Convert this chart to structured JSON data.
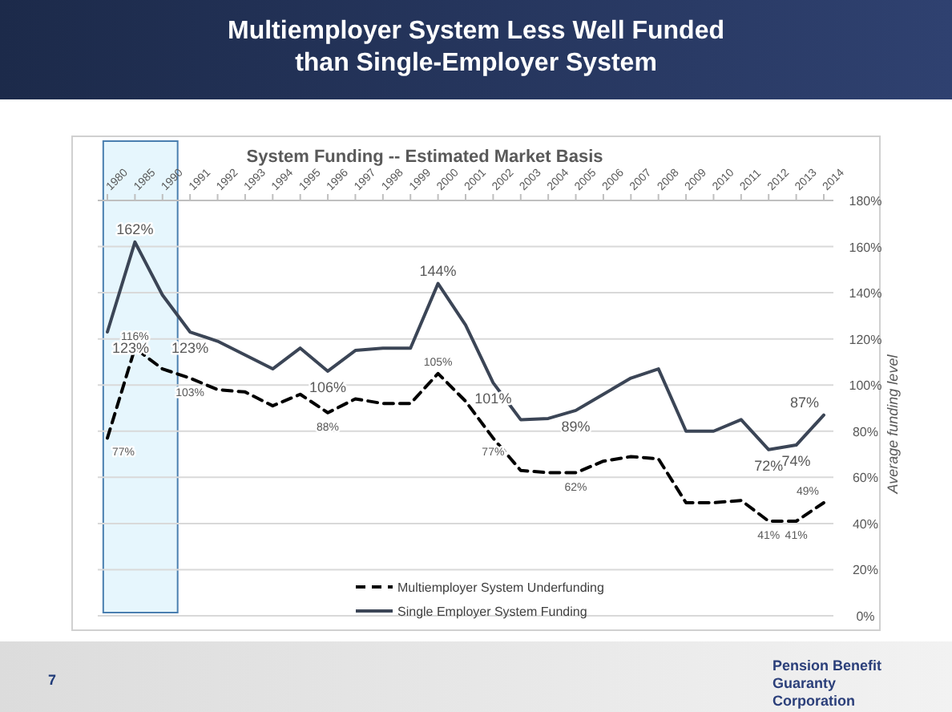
{
  "chart_data": {
    "type": "line",
    "title": "Multiemployer System Less Well Funded than Single-Employer System",
    "subtitle": "System Funding -- Estimated Market Basis",
    "ylabel": "Average funding level",
    "categories": [
      "1980",
      "1985",
      "1990",
      "1991",
      "1992",
      "1993",
      "1994",
      "1995",
      "1996",
      "1997",
      "1998",
      "1999",
      "2000",
      "2001",
      "2002",
      "2003",
      "2004",
      "2005",
      "2006",
      "2007",
      "2008",
      "2009",
      "2010",
      "2011",
      "2012",
      "2013",
      "2014"
    ],
    "series": [
      {
        "name": "Multiemployer System Underfunding",
        "color": "#000000",
        "line_style": "dashed",
        "values": [
          77,
          116,
          107,
          103,
          98,
          97,
          91,
          96,
          88,
          94,
          92,
          92,
          105,
          93,
          77,
          63,
          62,
          62,
          67,
          69,
          68,
          49,
          49,
          50,
          41,
          41,
          49
        ],
        "value_labels": [
          "77%",
          "116%",
          null,
          "103%",
          null,
          null,
          null,
          null,
          "88%",
          null,
          null,
          null,
          "105%",
          null,
          "77%",
          null,
          null,
          "62%",
          null,
          null,
          null,
          null,
          null,
          null,
          "41%",
          "41%",
          "49%"
        ]
      },
      {
        "name": "Single Employer System Funding",
        "color": "#3b4556",
        "line_style": "solid",
        "values": [
          123,
          162,
          139,
          123,
          119,
          113,
          107,
          116,
          106,
          115,
          116,
          116,
          144,
          126,
          101,
          85,
          85.5,
          89,
          96,
          103,
          107,
          80,
          80,
          85,
          72,
          74,
          87
        ],
        "value_labels": [
          "123%",
          "162%",
          null,
          "123%",
          null,
          null,
          null,
          null,
          "106%",
          null,
          null,
          null,
          "144%",
          null,
          "101%",
          null,
          null,
          "89%",
          null,
          null,
          null,
          null,
          null,
          null,
          "72%",
          "74%",
          "87%"
        ]
      }
    ],
    "ylim": [
      0,
      180
    ],
    "yticks": [
      {
        "value": 0,
        "label": "0%"
      },
      {
        "value": 20,
        "label": "20%"
      },
      {
        "value": 40,
        "label": "40%"
      },
      {
        "value": 60,
        "label": "60%"
      },
      {
        "value": 80,
        "label": "80%"
      },
      {
        "value": 100,
        "label": "100%"
      },
      {
        "value": 120,
        "label": "120%"
      },
      {
        "value": 140,
        "label": "140%"
      },
      {
        "value": 160,
        "label": "160%"
      },
      {
        "value": 180,
        "label": "180%"
      }
    ],
    "grid": "y",
    "legend": "bottom",
    "marker": "none",
    "bands": [
      {
        "axis": "x",
        "from": "1980",
        "to": "1990",
        "color": "#e6f6fd"
      }
    ],
    "annotations": [
      "7",
      "Pension Benefit Guaranty Corporation"
    ]
  }
}
